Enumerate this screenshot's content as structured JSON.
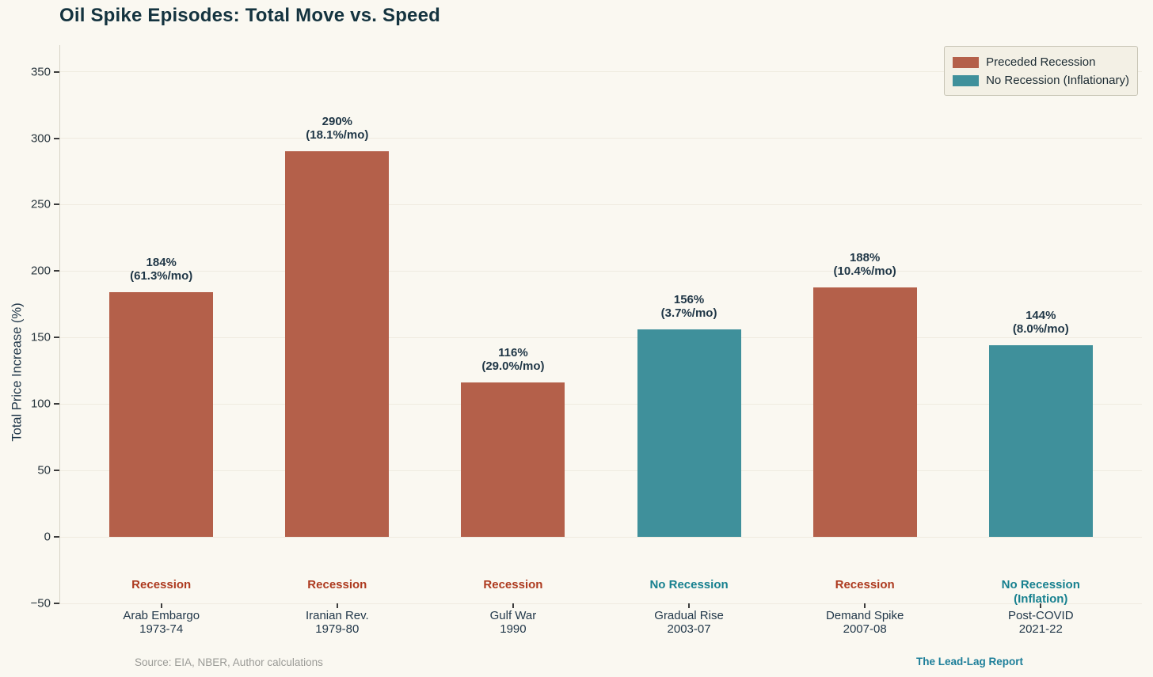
{
  "chart_data": {
    "type": "bar",
    "title": "Oil Spike Episodes: Total Move vs. Speed",
    "xlabel": "",
    "ylabel": "Total Price Increase (%)",
    "ylim": [
      -50,
      370
    ],
    "yticks": [
      -50,
      0,
      50,
      100,
      150,
      200,
      250,
      300,
      350
    ],
    "grid": true,
    "legend_position": "upper right",
    "colors": {
      "preceded_recession": "#b4604a",
      "no_recession": "#3f909b",
      "recession_annotation_text": "#ad3a1f",
      "no_recession_annotation_text": "#17808f"
    },
    "legend": [
      {
        "label": "Preceded Recession",
        "color": "#b4604a"
      },
      {
        "label": "No Recession (Inflationary)",
        "color": "#3f909b"
      }
    ],
    "bars": [
      {
        "episode": "Arab Embargo",
        "period": "1973-74",
        "value_pct": 184,
        "monthly_rate_pct": 61.3,
        "value_label": "184%",
        "rate_label": "(61.3%/mo)",
        "group": "preceded_recession",
        "annotation_lines": [
          "Recession"
        ],
        "annotation_color_key": "recession_annotation_text"
      },
      {
        "episode": "Iranian Rev.",
        "period": "1979-80",
        "value_pct": 290,
        "monthly_rate_pct": 18.1,
        "value_label": "290%",
        "rate_label": "(18.1%/mo)",
        "group": "preceded_recession",
        "annotation_lines": [
          "Recession"
        ],
        "annotation_color_key": "recession_annotation_text"
      },
      {
        "episode": "Gulf War",
        "period": "1990",
        "value_pct": 116,
        "monthly_rate_pct": 29.0,
        "value_label": "116%",
        "rate_label": "(29.0%/mo)",
        "group": "preceded_recession",
        "annotation_lines": [
          "Recession"
        ],
        "annotation_color_key": "recession_annotation_text"
      },
      {
        "episode": "Gradual Rise",
        "period": "2003-07",
        "value_pct": 156,
        "monthly_rate_pct": 3.7,
        "value_label": "156%",
        "rate_label": "(3.7%/mo)",
        "group": "no_recession",
        "annotation_lines": [
          "No Recession"
        ],
        "annotation_color_key": "no_recession_annotation_text"
      },
      {
        "episode": "Demand Spike",
        "period": "2007-08",
        "value_pct": 188,
        "monthly_rate_pct": 10.4,
        "value_label": "188%",
        "rate_label": "(10.4%/mo)",
        "group": "preceded_recession",
        "annotation_lines": [
          "Recession"
        ],
        "annotation_color_key": "recession_annotation_text"
      },
      {
        "episode": "Post-COVID",
        "period": "2021-22",
        "value_pct": 144,
        "monthly_rate_pct": 8.0,
        "value_label": "144%",
        "rate_label": "(8.0%/mo)",
        "group": "no_recession",
        "annotation_lines": [
          "No Recession",
          "(Inflation)"
        ],
        "annotation_color_key": "no_recession_annotation_text"
      }
    ]
  },
  "footer": {
    "source": "Source: EIA, NBER, Author calculations",
    "brand": "The Lead-Lag Report"
  }
}
